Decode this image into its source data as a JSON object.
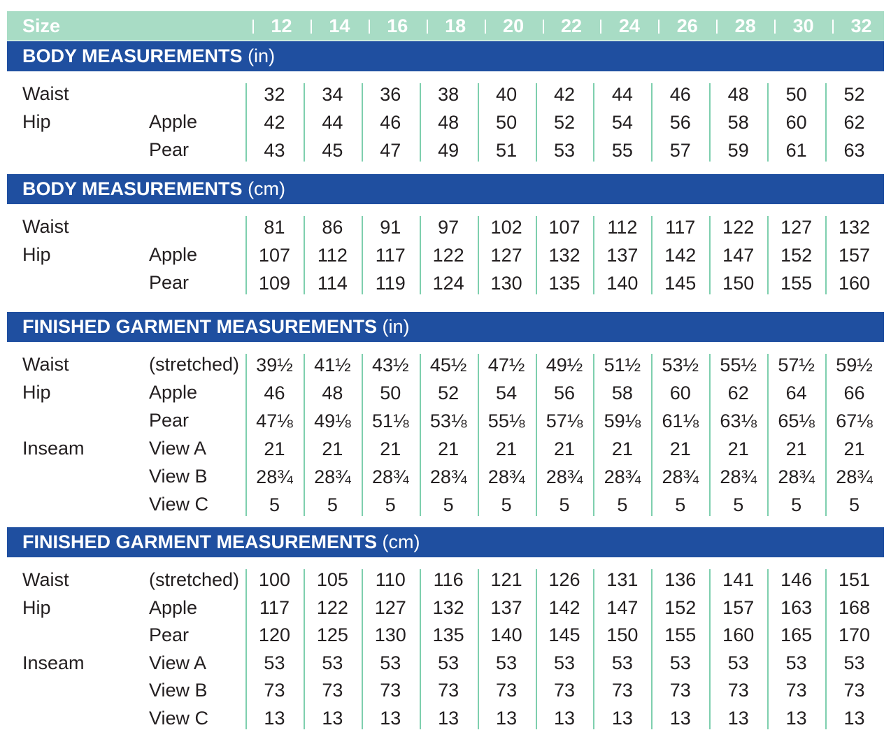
{
  "header": {
    "label": "Size",
    "sizes": [
      "12",
      "14",
      "16",
      "18",
      "20",
      "22",
      "24",
      "26",
      "28",
      "30",
      "32"
    ]
  },
  "sections": [
    {
      "title": "BODY MEASUREMENTS",
      "unit": "(in)",
      "rows": [
        {
          "label": "Waist",
          "sub": "",
          "values": [
            "32",
            "34",
            "36",
            "38",
            "40",
            "42",
            "44",
            "46",
            "48",
            "50",
            "52"
          ]
        },
        {
          "label": "Hip",
          "sub": "Apple",
          "values": [
            "42",
            "44",
            "46",
            "48",
            "50",
            "52",
            "54",
            "56",
            "58",
            "60",
            "62"
          ]
        },
        {
          "label": "",
          "sub": "Pear",
          "values": [
            "43",
            "45",
            "47",
            "49",
            "51",
            "53",
            "55",
            "57",
            "59",
            "61",
            "63"
          ]
        }
      ]
    },
    {
      "title": "BODY MEASUREMENTS",
      "unit": "(cm)",
      "rows": [
        {
          "label": "Waist",
          "sub": "",
          "values": [
            "81",
            "86",
            "91",
            "97",
            "102",
            "107",
            "112",
            "117",
            "122",
            "127",
            "132"
          ]
        },
        {
          "label": "Hip",
          "sub": "Apple",
          "values": [
            "107",
            "112",
            "117",
            "122",
            "127",
            "132",
            "137",
            "142",
            "147",
            "152",
            "157"
          ]
        },
        {
          "label": "",
          "sub": "Pear",
          "values": [
            "109",
            "114",
            "119",
            "124",
            "130",
            "135",
            "140",
            "145",
            "150",
            "155",
            "160"
          ]
        }
      ]
    },
    {
      "title": "FINISHED GARMENT MEASUREMENTS",
      "unit": "(in)",
      "rows": [
        {
          "label": "Waist",
          "sub": "(stretched)",
          "values": [
            "39½",
            "41½",
            "43½",
            "45½",
            "47½",
            "49½",
            "51½",
            "53½",
            "55½",
            "57½",
            "59½"
          ]
        },
        {
          "label": "Hip",
          "sub": "Apple",
          "values": [
            "46",
            "48",
            "50",
            "52",
            "54",
            "56",
            "58",
            "60",
            "62",
            "64",
            "66"
          ]
        },
        {
          "label": "",
          "sub": "Pear",
          "values": [
            "47⅛",
            "49⅛",
            "51⅛",
            "53⅛",
            "55⅛",
            "57⅛",
            "59⅛",
            "61⅛",
            "63⅛",
            "65⅛",
            "67⅛"
          ]
        },
        {
          "label": "Inseam",
          "sub": "View A",
          "values": [
            "21",
            "21",
            "21",
            "21",
            "21",
            "21",
            "21",
            "21",
            "21",
            "21",
            "21"
          ]
        },
        {
          "label": "",
          "sub": "View B",
          "values": [
            "28¾",
            "28¾",
            "28¾",
            "28¾",
            "28¾",
            "28¾",
            "28¾",
            "28¾",
            "28¾",
            "28¾",
            "28¾"
          ]
        },
        {
          "label": "",
          "sub": "View C",
          "values": [
            "5",
            "5",
            "5",
            "5",
            "5",
            "5",
            "5",
            "5",
            "5",
            "5",
            "5"
          ]
        }
      ]
    },
    {
      "title": "FINISHED GARMENT MEASUREMENTS",
      "unit": "(cm)",
      "rows": [
        {
          "label": "Waist",
          "sub": "(stretched)",
          "values": [
            "100",
            "105",
            "110",
            "116",
            "121",
            "126",
            "131",
            "136",
            "141",
            "146",
            "151"
          ]
        },
        {
          "label": "Hip",
          "sub": "Apple",
          "values": [
            "117",
            "122",
            "127",
            "132",
            "137",
            "142",
            "147",
            "152",
            "157",
            "163",
            "168"
          ]
        },
        {
          "label": "",
          "sub": "Pear",
          "values": [
            "120",
            "125",
            "130",
            "135",
            "140",
            "145",
            "150",
            "155",
            "160",
            "165",
            "170"
          ]
        },
        {
          "label": "Inseam",
          "sub": "View A",
          "values": [
            "53",
            "53",
            "53",
            "53",
            "53",
            "53",
            "53",
            "53",
            "53",
            "53",
            "53"
          ]
        },
        {
          "label": "",
          "sub": "View B",
          "values": [
            "73",
            "73",
            "73",
            "73",
            "73",
            "73",
            "73",
            "73",
            "73",
            "73",
            "73"
          ]
        },
        {
          "label": "",
          "sub": "View C",
          "values": [
            "13",
            "13",
            "13",
            "13",
            "13",
            "13",
            "13",
            "13",
            "13",
            "13",
            "13"
          ]
        }
      ]
    }
  ],
  "colors": {
    "header_bg": "#a8dcc5",
    "banner_bg": "#1f4fa0",
    "divider": "#7ecfae",
    "text": "#231f20"
  }
}
